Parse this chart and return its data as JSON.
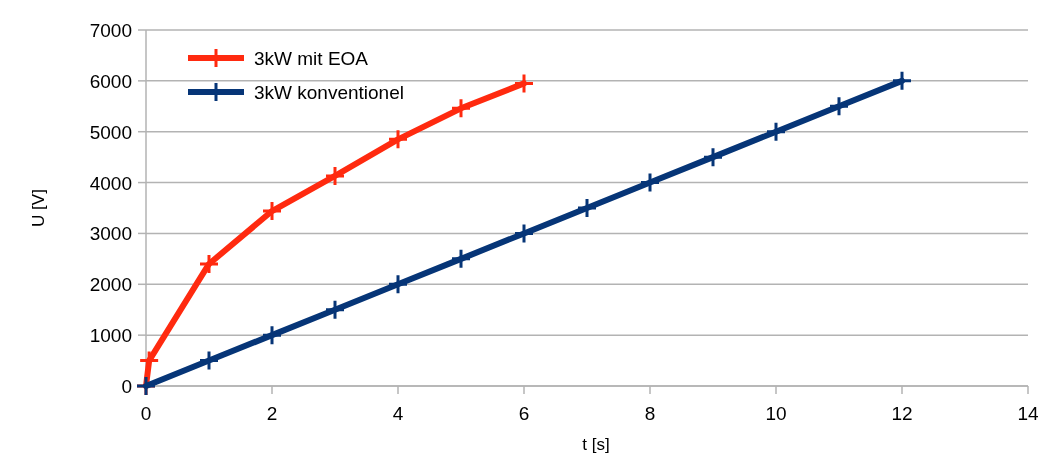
{
  "chart_data": {
    "type": "line",
    "xlabel": "t [s]",
    "ylabel": "U [V]",
    "xlim": [
      0,
      14
    ],
    "xticks": [
      0,
      2,
      4,
      6,
      8,
      10,
      12,
      14
    ],
    "ylim": [
      0,
      7000
    ],
    "yticks": [
      0,
      1000,
      2000,
      3000,
      4000,
      5000,
      6000,
      7000
    ],
    "grid": "y",
    "legend": "top left",
    "marker": "cross",
    "series": [
      {
        "name": "3kW mit EOA",
        "color": "#ff2a0f",
        "x": [
          0,
          0.05,
          1,
          2,
          3,
          4,
          5,
          6
        ],
        "values": [
          0,
          500,
          2400,
          3440,
          4130,
          4850,
          5460,
          5950
        ]
      },
      {
        "name": "3kW konventionel",
        "color": "#063577",
        "x": [
          0,
          1,
          2,
          3,
          4,
          5,
          6,
          7,
          8,
          9,
          10,
          11,
          12
        ],
        "values": [
          0,
          500,
          1000,
          1500,
          2000,
          2500,
          3000,
          3500,
          4000,
          4500,
          5000,
          5500,
          6000
        ]
      }
    ]
  }
}
